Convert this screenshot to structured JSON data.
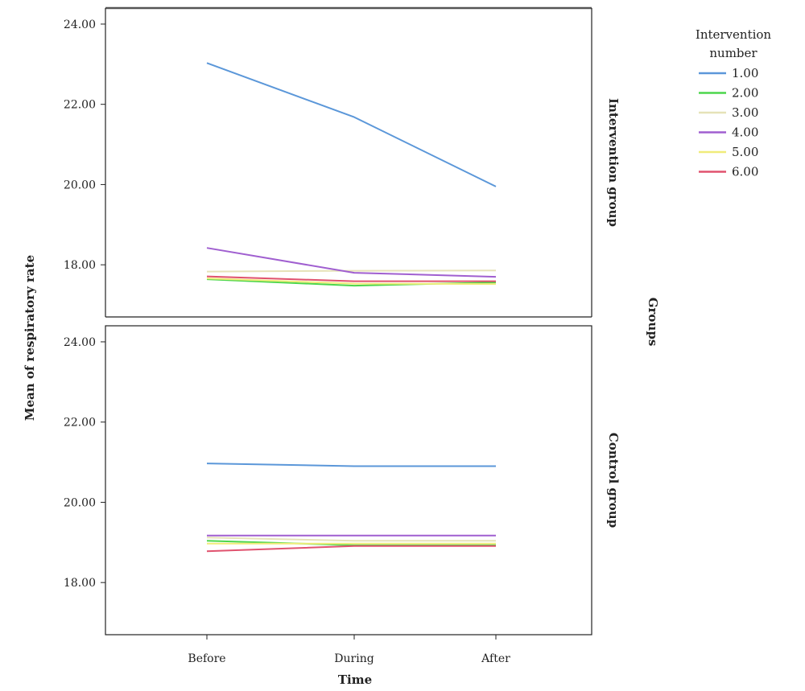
{
  "chart_data": {
    "type": "line",
    "xlabel": "Time",
    "ylabel": "Mean of respiratory rate",
    "categories": [
      "Before",
      "During",
      "After"
    ],
    "ylim": [
      16.7,
      24.4
    ],
    "yticks": [
      "18.00",
      "20.00",
      "22.00",
      "24.00"
    ],
    "grid": false,
    "facet_title": "Groups",
    "legend": {
      "title_lines": [
        "Intervention",
        "number"
      ],
      "position": "top-right"
    },
    "series": [
      {
        "name": "1.00",
        "color": "#5b97d9"
      },
      {
        "name": "2.00",
        "color": "#4cd64c"
      },
      {
        "name": "3.00",
        "color": "#e6e2b8"
      },
      {
        "name": "4.00",
        "color": "#a05fd0"
      },
      {
        "name": "5.00",
        "color": "#f0ec7a"
      },
      {
        "name": "6.00",
        "color": "#e0526e"
      }
    ],
    "panels": [
      {
        "label": "Intervention group",
        "values": [
          [
            23.03,
            21.68,
            19.95
          ],
          [
            17.64,
            17.48,
            17.56
          ],
          [
            17.83,
            17.85,
            17.86
          ],
          [
            18.42,
            17.8,
            17.7
          ],
          [
            17.66,
            17.53,
            17.52
          ],
          [
            17.71,
            17.59,
            17.59
          ]
        ]
      },
      {
        "label": "Control group",
        "values": [
          [
            20.97,
            20.9,
            20.9
          ],
          [
            19.04,
            18.93,
            18.93
          ],
          [
            19.12,
            19.04,
            19.04
          ],
          [
            19.17,
            19.17,
            19.17
          ],
          [
            18.97,
            18.97,
            18.97
          ],
          [
            18.78,
            18.91,
            18.91
          ]
        ]
      }
    ]
  }
}
